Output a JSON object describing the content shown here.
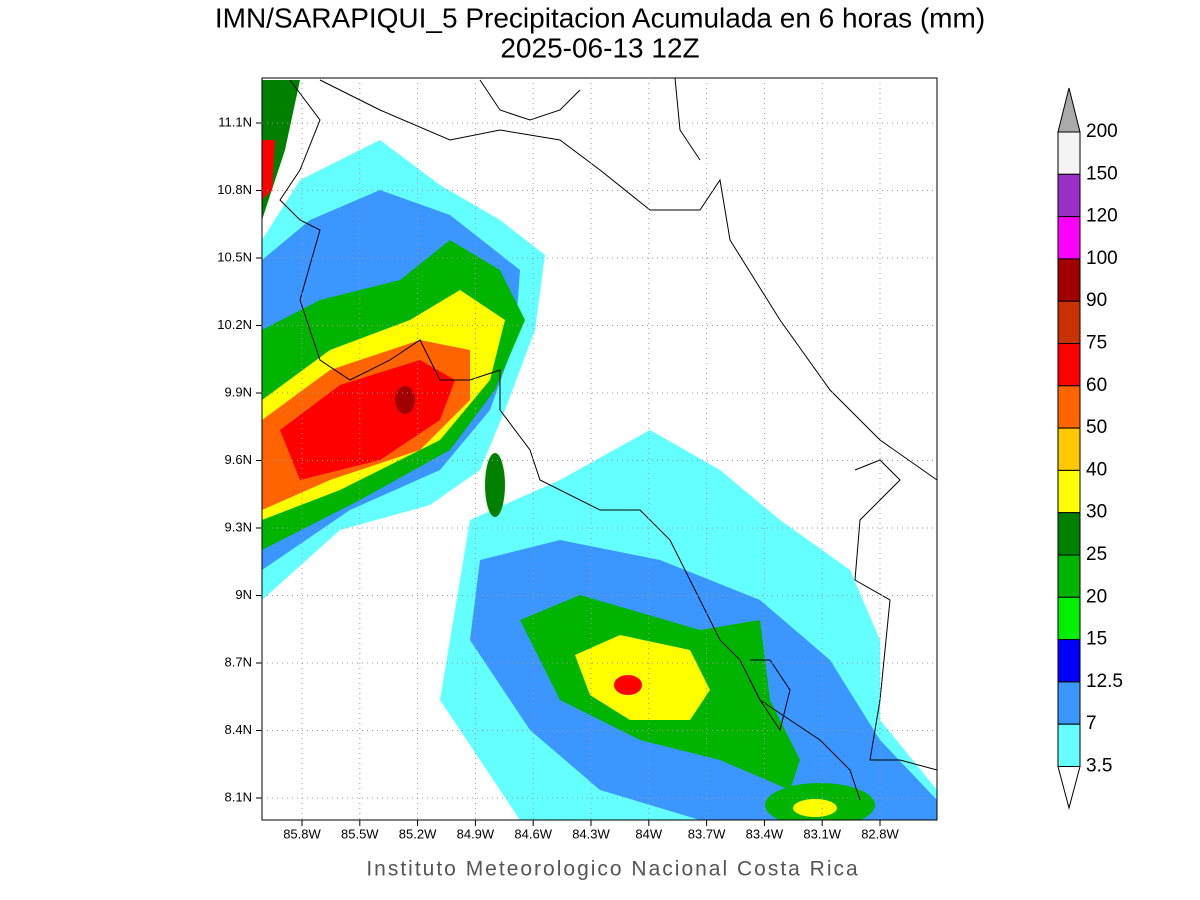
{
  "title": {
    "line1": "IMN/SARAPIQUI_5 Precipitacion Acumulada en 6 horas (mm)",
    "line2": "2025-06-13 12Z"
  },
  "map": {
    "lat_labels": [
      "11.1N",
      "10.8N",
      "10.5N",
      "10.2N",
      "9.9N",
      "9.6N",
      "9.3N",
      "9N",
      "8.7N",
      "8.4N",
      "8.1N"
    ],
    "lon_labels": [
      "85.8W",
      "85.5W",
      "85.2W",
      "84.9W",
      "84.6W",
      "84.3W",
      "84W",
      "83.7W",
      "83.4W",
      "83.1W",
      "82.8W"
    ]
  },
  "colorbar": {
    "labels": [
      "200",
      "150",
      "120",
      "100",
      "90",
      "75",
      "60",
      "50",
      "40",
      "30",
      "25",
      "20",
      "15",
      "12.5",
      "7",
      "3.5"
    ],
    "over_color": "#aaaaaa",
    "box_colors": [
      "#f4f4f4",
      "#9a30c8",
      "#ff00ff",
      "#a00000",
      "#c83200",
      "#ff0000",
      "#ff6400",
      "#ffc800",
      "#ffff00",
      "#008000",
      "#00b400",
      "#00f000",
      "#0000ff",
      "#3c96ff",
      "#64ffff"
    ],
    "under_color": "#ffffff"
  },
  "footer": "Instituto Meteorologico Nacional Costa Rica"
}
